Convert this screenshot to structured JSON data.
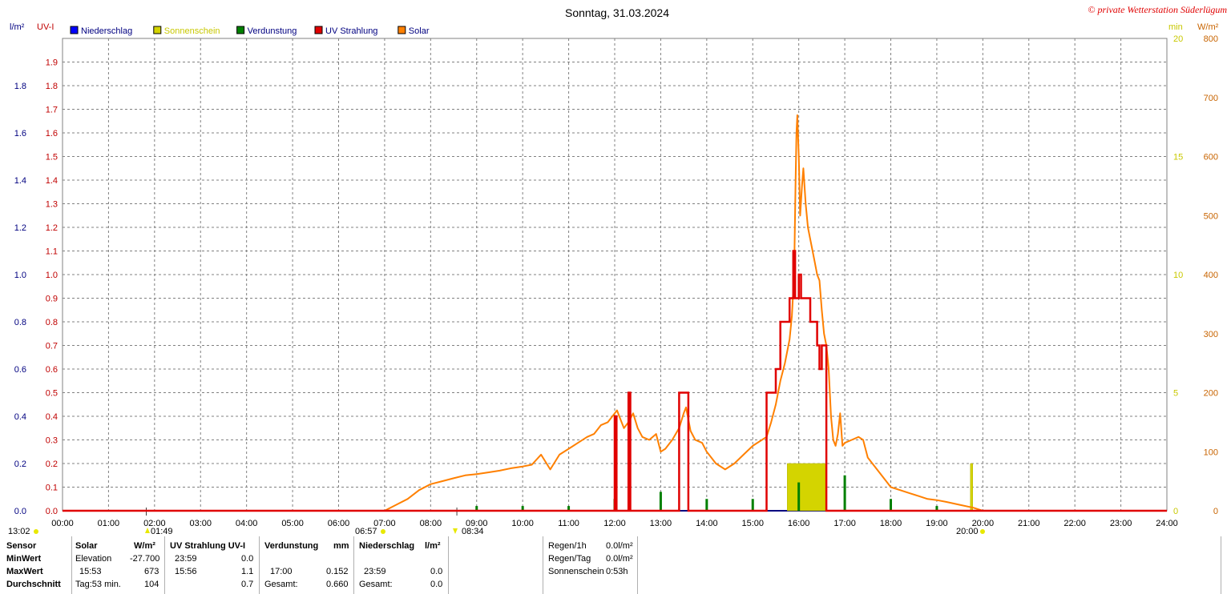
{
  "title": "Sonntag, 31.03.2024",
  "copyright": "© private Wetterstation Süderlügum",
  "axes": {
    "left_unit_1": "l/m²",
    "left_unit_2": "UV-I",
    "right_unit_1": "min",
    "right_unit_2": "W/m²"
  },
  "legend": [
    {
      "label": "Niederschlag",
      "color": "#0000ff",
      "text_color": "#000080"
    },
    {
      "label": "Sonnenschein",
      "color": "#d4d400",
      "text_color": "#c8c800"
    },
    {
      "label": "Verdunstung",
      "color": "#008000",
      "text_color": "#000080"
    },
    {
      "label": "UV Strahlung",
      "color": "#e00000",
      "text_color": "#000080"
    },
    {
      "label": "Solar",
      "color": "#ff8000",
      "text_color": "#000080"
    }
  ],
  "colors": {
    "rain_axis": "#000080",
    "uv_axis": "#c00000",
    "sun_axis": "#c8c800",
    "solar_axis": "#c86400",
    "grid": "#808080"
  },
  "astro": {
    "left_edge": "13:02",
    "moonset": "01:49",
    "sunrise": "06:57",
    "moonrise": "08:34",
    "sunset": "20:00"
  },
  "chart_data": {
    "type": "line",
    "title": "Sonntag, 31.03.2024",
    "x_ticks": [
      "00:00",
      "01:00",
      "02:00",
      "03:00",
      "04:00",
      "05:00",
      "06:00",
      "07:00",
      "08:00",
      "09:00",
      "10:00",
      "11:00",
      "12:00",
      "13:00",
      "14:00",
      "15:00",
      "16:00",
      "17:00",
      "18:00",
      "19:00",
      "20:00",
      "21:00",
      "22:00",
      "23:00",
      "24:00"
    ],
    "xlim_hours": [
      0,
      24
    ],
    "rain_axis": {
      "label": "l/m²",
      "ylim": [
        0,
        2.0
      ],
      "ticks": [
        "0.0",
        "0.2",
        "0.4",
        "0.6",
        "0.8",
        "1.0",
        "1.2",
        "1.4",
        "1.6",
        "1.8"
      ]
    },
    "uv_axis": {
      "label": "UV-I",
      "ylim": [
        0,
        2.0
      ],
      "ticks": [
        "0.0",
        "0.1",
        "0.2",
        "0.3",
        "0.4",
        "0.5",
        "0.6",
        "0.7",
        "0.8",
        "0.9",
        "1.0",
        "1.1",
        "1.2",
        "1.3",
        "1.4",
        "1.5",
        "1.6",
        "1.7",
        "1.8",
        "1.9"
      ]
    },
    "sun_axis": {
      "label": "min",
      "ylim": [
        0,
        20
      ],
      "ticks": [
        "0",
        "5",
        "10",
        "15",
        "20"
      ]
    },
    "solar_axis": {
      "label": "W/m²",
      "ylim": [
        0,
        800
      ],
      "ticks": [
        "0",
        "100",
        "200",
        "300",
        "400",
        "500",
        "600",
        "700",
        "800"
      ]
    },
    "series": [
      {
        "name": "Solar",
        "color": "#ff8000",
        "axis": "solar",
        "x": [
          7.0,
          7.25,
          7.5,
          7.75,
          8.0,
          8.25,
          8.5,
          8.75,
          9.0,
          9.25,
          9.5,
          9.75,
          10.0,
          10.2,
          10.4,
          10.6,
          10.8,
          11.0,
          11.2,
          11.4,
          11.55,
          11.7,
          11.85,
          12.0,
          12.05,
          12.1,
          12.2,
          12.3,
          12.4,
          12.5,
          12.6,
          12.75,
          12.9,
          13.0,
          13.1,
          13.25,
          13.4,
          13.5,
          13.55,
          13.65,
          13.75,
          13.9,
          14.0,
          14.2,
          14.4,
          14.6,
          14.8,
          15.0,
          15.2,
          15.3,
          15.4,
          15.5,
          15.6,
          15.7,
          15.8,
          15.85,
          15.9,
          15.93,
          15.95,
          15.97,
          16.0,
          16.03,
          16.07,
          16.1,
          16.15,
          16.2,
          16.25,
          16.3,
          16.35,
          16.4,
          16.45,
          16.5,
          16.55,
          16.6,
          16.65,
          16.7,
          16.75,
          16.8,
          16.85,
          16.9,
          16.95,
          17.0,
          17.15,
          17.3,
          17.4,
          17.5,
          17.7,
          17.9,
          18.0,
          18.2,
          18.4,
          18.6,
          18.8,
          19.0,
          19.2,
          19.5,
          19.8,
          20.0
        ],
        "values": [
          0,
          10,
          20,
          35,
          45,
          50,
          55,
          60,
          62,
          65,
          68,
          72,
          75,
          78,
          95,
          70,
          95,
          105,
          115,
          125,
          130,
          145,
          150,
          165,
          170,
          160,
          140,
          150,
          165,
          140,
          125,
          120,
          130,
          100,
          105,
          120,
          140,
          165,
          175,
          135,
          120,
          115,
          100,
          80,
          70,
          80,
          95,
          110,
          120,
          125,
          150,
          180,
          220,
          250,
          290,
          330,
          400,
          550,
          640,
          670,
          600,
          500,
          550,
          580,
          520,
          480,
          460,
          440,
          420,
          400,
          390,
          340,
          300,
          280,
          240,
          160,
          120,
          110,
          130,
          165,
          110,
          115,
          120,
          125,
          120,
          90,
          70,
          50,
          40,
          35,
          30,
          25,
          20,
          18,
          15,
          10,
          5,
          0
        ]
      },
      {
        "name": "UV Strahlung",
        "color": "#e00000",
        "axis": "uv",
        "x": [
          0,
          12.0,
          12.0,
          12.04,
          12.04,
          12.3,
          12.3,
          12.34,
          12.34,
          12.45,
          12.45,
          12.55,
          12.55,
          13.4,
          13.4,
          13.6,
          13.6,
          15.3,
          15.3,
          15.5,
          15.5,
          15.6,
          15.6,
          15.8,
          15.8,
          15.88,
          15.88,
          15.92,
          15.92,
          16.0,
          16.0,
          16.05,
          16.05,
          16.1,
          16.1,
          16.25,
          16.25,
          16.4,
          16.4,
          16.45,
          16.45,
          16.5,
          16.5,
          16.6,
          16.6,
          16.65,
          16.65,
          24
        ],
        "values": [
          0,
          0,
          0.4,
          0.4,
          0.0,
          0.0,
          0.5,
          0.5,
          0.0,
          0.0,
          0.0,
          0.0,
          0.0,
          0.0,
          0.5,
          0.5,
          0.0,
          0.0,
          0.5,
          0.5,
          0.6,
          0.6,
          0.8,
          0.8,
          0.9,
          0.9,
          1.1,
          1.1,
          0.9,
          0.9,
          1.0,
          1.0,
          0.9,
          0.9,
          0.9,
          0.9,
          0.8,
          0.8,
          0.7,
          0.7,
          0.6,
          0.6,
          0.7,
          0.7,
          0.0,
          0.0,
          0.0,
          0
        ]
      },
      {
        "name": "Sonnenschein",
        "color": "#d4d400",
        "axis": "sun",
        "bars": [
          {
            "from": 15.75,
            "to": 16.6,
            "value": 2
          },
          {
            "from": 19.73,
            "to": 19.78,
            "value": 2
          }
        ]
      },
      {
        "name": "Verdunstung",
        "color": "#008000",
        "axis": "rain",
        "x": [
          9.0,
          10.0,
          11.0,
          12.0,
          13.0,
          14.0,
          15.0,
          16.0,
          17.0,
          18.0,
          19.0
        ],
        "values": [
          0.02,
          0.02,
          0.02,
          0.05,
          0.08,
          0.05,
          0.05,
          0.12,
          0.15,
          0.05,
          0.02
        ]
      },
      {
        "name": "Niederschlag",
        "color": "#0000ff",
        "axis": "rain",
        "x": [],
        "values": []
      }
    ]
  },
  "stats": {
    "row_labels": [
      "Sensor",
      "MinWert",
      "MaxWert",
      "Durchschnitt"
    ],
    "solar": {
      "header": "Solar",
      "unit": "W/m²",
      "min_label": "Elevation",
      "min_value": "-27.700",
      "max_time": "15:53",
      "max_value": "673",
      "avg_label": "Tag:53 min.",
      "avg_value": "104"
    },
    "uv": {
      "header": "UV Strahlung UV-I",
      "min_time": "23:59",
      "min_value": "0.0",
      "max_time": "15:56",
      "max_value": "1.1",
      "avg_value": "0.7"
    },
    "evap": {
      "header": "Verdunstung",
      "unit": "mm",
      "max_time": "17:00",
      "max_value": "0.152",
      "total_label": "Gesamt:",
      "total_value": "0.660"
    },
    "rain": {
      "header": "Niederschlag",
      "unit": "l/m²",
      "max_time": "23:59",
      "max_value": "0.0",
      "total_label": "Gesamt:",
      "total_value": "0.0"
    },
    "summary": {
      "regen_1h_label": "Regen/1h",
      "regen_1h_value": "0.0l/m²",
      "regen_tag_label": "Regen/Tag",
      "regen_tag_value": "0.0l/m²",
      "sonnenschein_label": "Sonnenschein",
      "sonnenschein_value": "0:53h"
    }
  }
}
